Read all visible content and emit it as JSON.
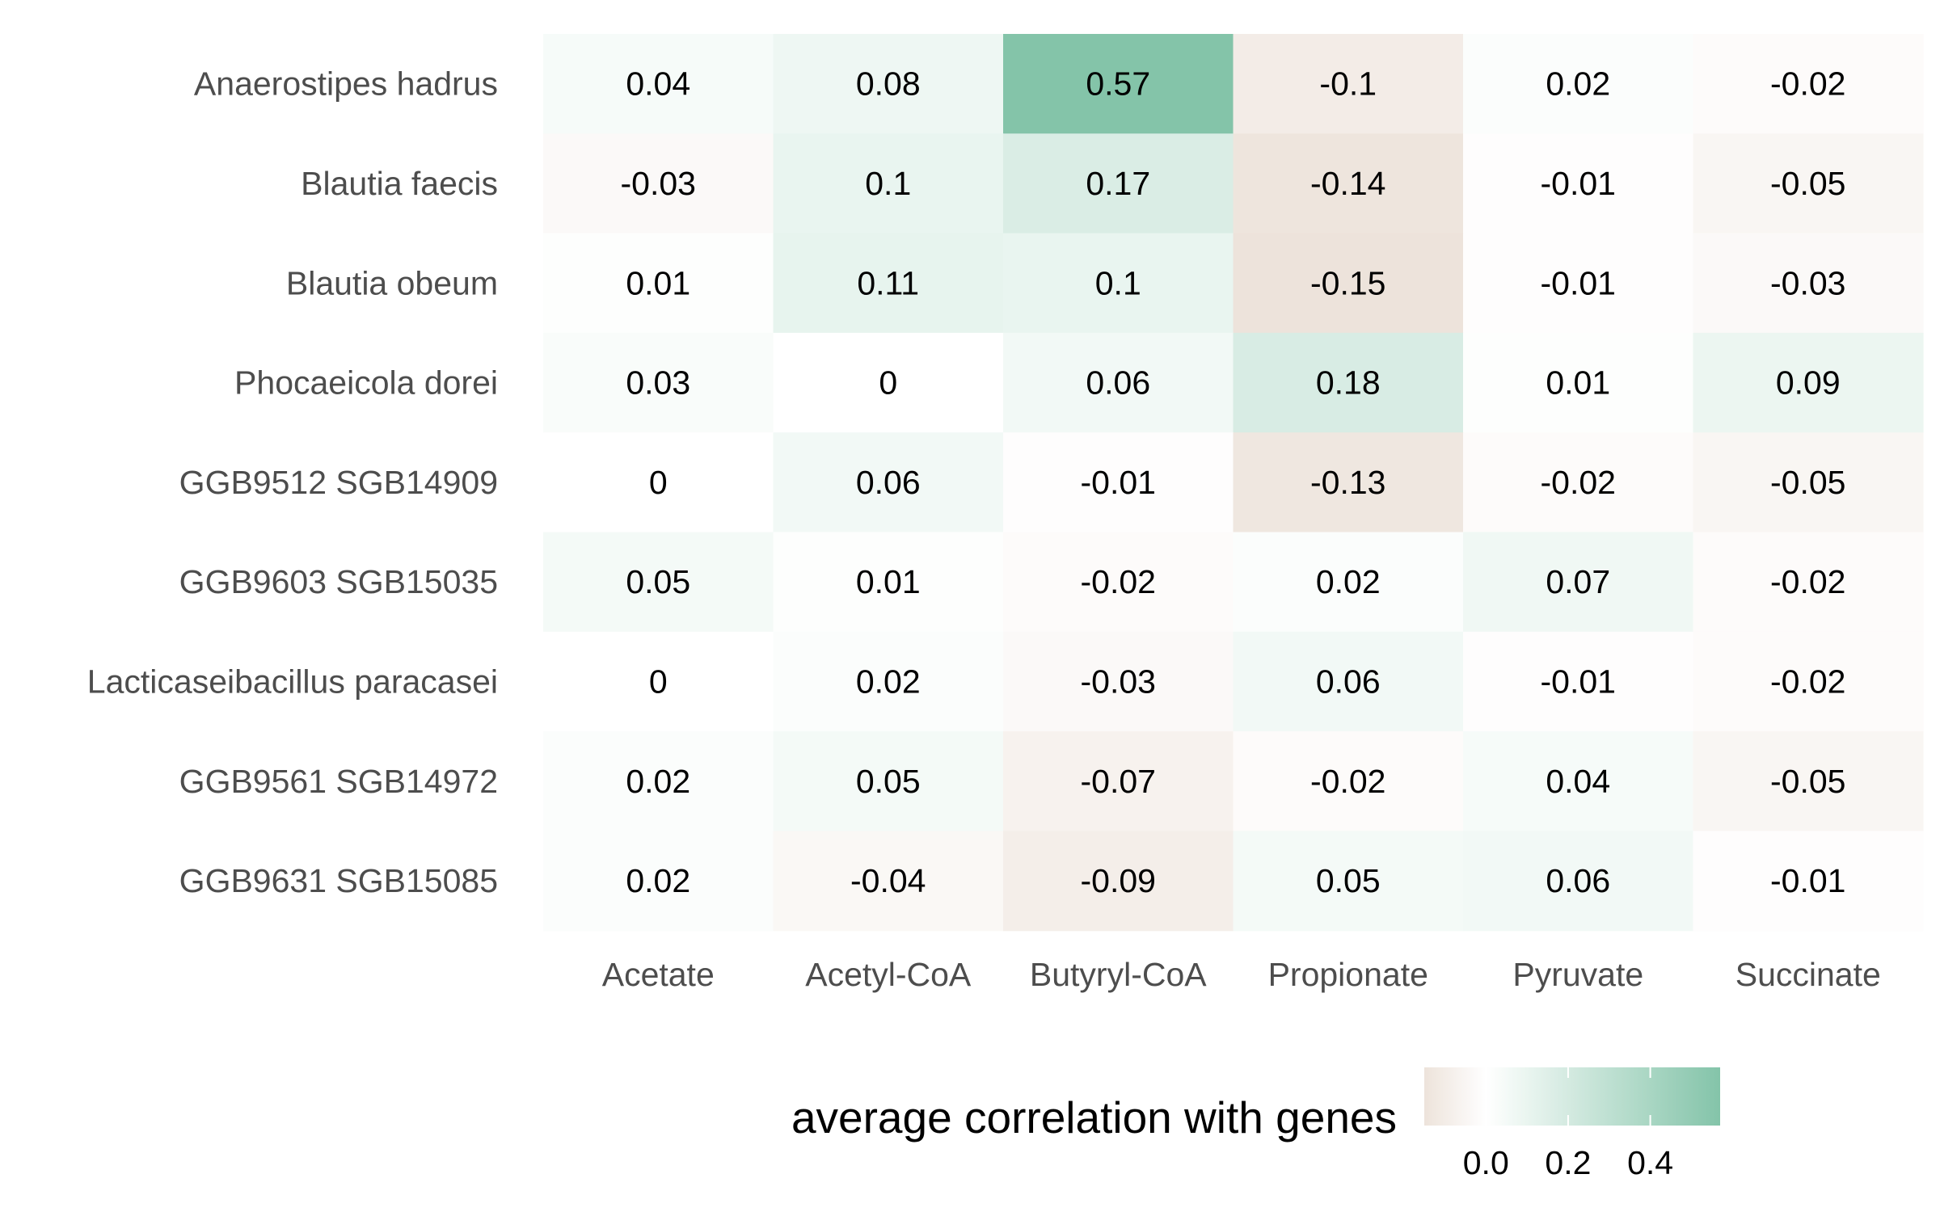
{
  "chart_data": {
    "type": "heatmap",
    "rows": [
      "Anaerostipes hadrus",
      "Blautia faecis",
      "Blautia obeum",
      "Phocaeicola dorei",
      "GGB9512 SGB14909",
      "GGB9603 SGB15035",
      "Lacticaseibacillus paracasei",
      "GGB9561 SGB14972",
      "GGB9631 SGB15085"
    ],
    "columns": [
      "Acetate",
      "Acetyl-CoA",
      "Butyryl-CoA",
      "Propionate",
      "Pyruvate",
      "Succinate"
    ],
    "values": [
      [
        0.04,
        0.08,
        0.57,
        -0.1,
        0.02,
        -0.02
      ],
      [
        -0.03,
        0.1,
        0.17,
        -0.14,
        -0.01,
        -0.05
      ],
      [
        0.01,
        0.11,
        0.1,
        -0.15,
        -0.01,
        -0.03
      ],
      [
        0.03,
        0,
        0.06,
        0.18,
        0.01,
        0.09
      ],
      [
        0,
        0.06,
        -0.01,
        -0.13,
        -0.02,
        -0.05
      ],
      [
        0.05,
        0.01,
        -0.02,
        0.02,
        0.07,
        -0.02
      ],
      [
        0,
        0.02,
        -0.03,
        0.06,
        -0.01,
        -0.02
      ],
      [
        0.02,
        0.05,
        -0.07,
        -0.02,
        0.04,
        -0.05
      ],
      [
        0.02,
        -0.04,
        -0.09,
        0.05,
        0.06,
        -0.01
      ]
    ],
    "value_labels": [
      [
        "0.04",
        "0.08",
        "0.57",
        "-0.1",
        "0.02",
        "-0.02"
      ],
      [
        "-0.03",
        "0.1",
        "0.17",
        "-0.14",
        "-0.01",
        "-0.05"
      ],
      [
        "0.01",
        "0.11",
        "0.1",
        "-0.15",
        "-0.01",
        "-0.03"
      ],
      [
        "0.03",
        "0",
        "0.06",
        "0.18",
        "0.01",
        "0.09"
      ],
      [
        "0",
        "0.06",
        "-0.01",
        "-0.13",
        "-0.02",
        "-0.05"
      ],
      [
        "0.05",
        "0.01",
        "-0.02",
        "0.02",
        "0.07",
        "-0.02"
      ],
      [
        "0",
        "0.02",
        "-0.03",
        "0.06",
        "-0.01",
        "-0.02"
      ],
      [
        "0.02",
        "0.05",
        "-0.07",
        "-0.02",
        "0.04",
        "-0.05"
      ],
      [
        "0.02",
        "-0.04",
        "-0.09",
        "0.05",
        "0.06",
        "-0.01"
      ]
    ],
    "title": "",
    "xlabel": "",
    "ylabel": "",
    "legend": {
      "title": "average correlation with genes",
      "placement": "bottom-right",
      "ticks": [
        0.0,
        0.2,
        0.4
      ],
      "tick_labels": [
        "0.0",
        "0.2",
        "0.4"
      ],
      "range": [
        -0.15,
        0.57
      ]
    },
    "colors": {
      "low": "#ede3db",
      "mid": "#ffffff",
      "high": "#84c4a9"
    },
    "grid": false
  }
}
